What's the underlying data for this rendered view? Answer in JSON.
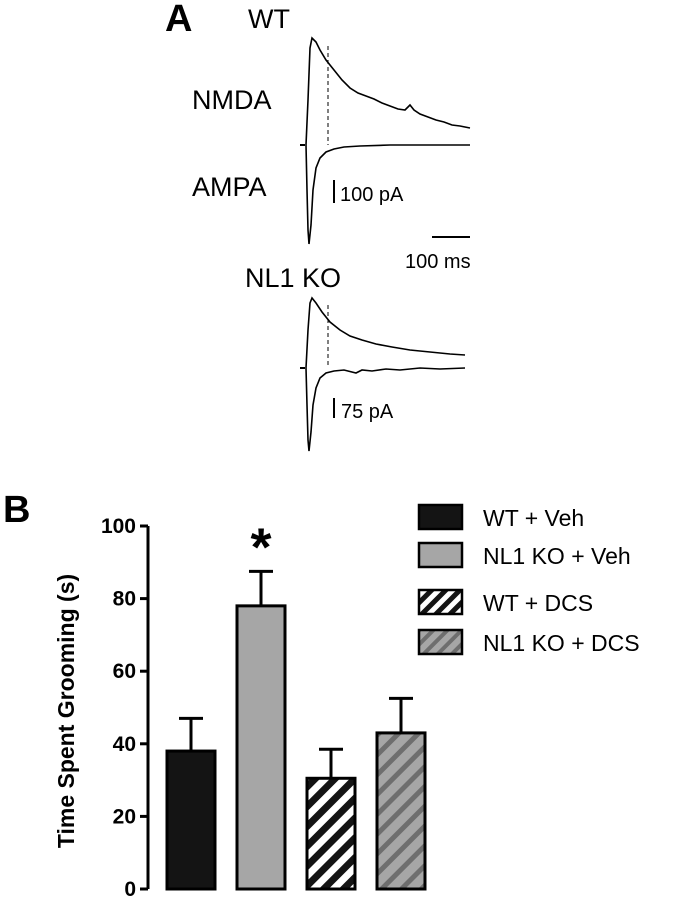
{
  "panel_a": {
    "letter": "A",
    "wt": {
      "title": "WT",
      "nmda_label": "NMDA",
      "ampa_label": "AMPA",
      "scale_current": "100 pA",
      "scale_time": "100 ms"
    },
    "ko": {
      "title": "NL1 KO",
      "scale_current": "75 pA"
    }
  },
  "panel_b": {
    "letter": "B"
  },
  "chart_data": {
    "type": "bar",
    "categories": [
      "WT + Veh",
      "NL1 KO + Veh",
      "WT + DCS",
      "NL1 KO + DCS"
    ],
    "values": [
      38,
      78,
      30.5,
      43
    ],
    "errors": [
      9,
      9.5,
      8,
      9.5
    ],
    "fills": [
      "solid",
      "solid",
      "hatched",
      "hatched"
    ],
    "colors": [
      "#141414",
      "#a6a6a6",
      "#141414",
      "#a6a6a6"
    ],
    "ylabel": "Time Spent Grooming (s)",
    "ylim": [
      0,
      100
    ],
    "yticks": [
      0,
      20,
      40,
      60,
      80,
      100
    ],
    "annotation": "*",
    "annotation_category": "NL1 KO + Veh",
    "legend": [
      "WT + Veh",
      "NL1 KO + Veh",
      "WT + DCS",
      "NL1 KO + DCS"
    ],
    "legend_position": "top-right",
    "grid": false
  }
}
